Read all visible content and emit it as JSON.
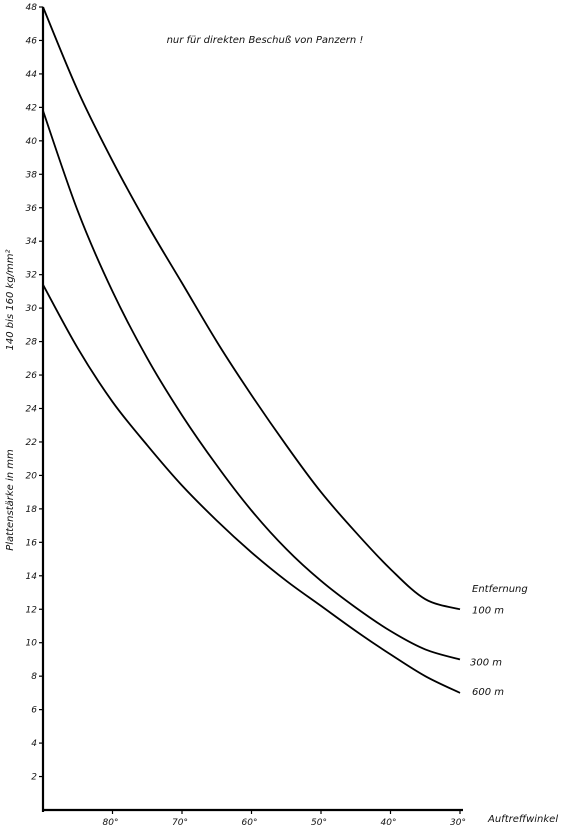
{
  "chart_data": {
    "type": "line",
    "title": "nur für direkten Beschuß von Panzern !",
    "ylabel": "Plattenstärke in mm",
    "ylabel2": "140 bis 160 kg/mm²",
    "xlabel": "Auftreffwinkel",
    "legend_title": "Entfernung",
    "ylim": [
      0,
      48
    ],
    "xlim": [
      90,
      30
    ],
    "y_ticks": [
      "2",
      "4",
      "6",
      "8",
      "10",
      "12",
      "14",
      "16",
      "18",
      "20",
      "22",
      "24",
      "26",
      "28",
      "30",
      "32",
      "34",
      "36",
      "38",
      "40",
      "42",
      "44",
      "46",
      "48"
    ],
    "x_ticks": [
      {
        "value": 80,
        "label": "80°"
      },
      {
        "value": 70,
        "label": "70°"
      },
      {
        "value": 60,
        "label": "60°"
      },
      {
        "value": 50,
        "label": "50°"
      },
      {
        "value": 40,
        "label": "40°"
      },
      {
        "value": 30,
        "label": "30°"
      }
    ],
    "series": [
      {
        "name": "100 m",
        "x": [
          90,
          85,
          80,
          75,
          70,
          65,
          60,
          55,
          50,
          45,
          40,
          35,
          30
        ],
        "y": [
          48,
          43,
          38.8,
          35,
          31.5,
          28,
          24.8,
          21.8,
          19,
          16.6,
          14.4,
          12.6,
          12
        ]
      },
      {
        "name": "300 m",
        "x": [
          90,
          85,
          80,
          75,
          70,
          65,
          60,
          55,
          50,
          45,
          40,
          35,
          30
        ],
        "y": [
          41.8,
          35.8,
          31,
          27,
          23.6,
          20.6,
          17.9,
          15.6,
          13.7,
          12.1,
          10.7,
          9.6,
          9
        ]
      },
      {
        "name": "600 m",
        "x": [
          90,
          85,
          80,
          75,
          70,
          65,
          60,
          55,
          50,
          45,
          40,
          35,
          30
        ],
        "y": [
          31.4,
          27.6,
          24.4,
          21.8,
          19.4,
          17.3,
          15.4,
          13.7,
          12.2,
          10.7,
          9.3,
          8.0,
          7.0
        ]
      }
    ]
  }
}
